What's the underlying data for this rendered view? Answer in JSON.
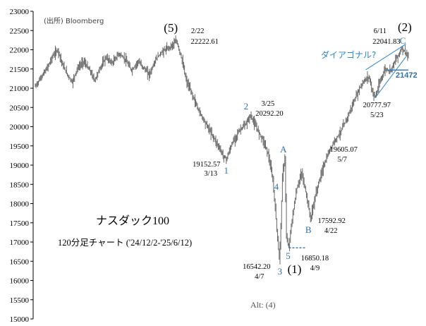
{
  "source": "(出所) Bloomberg",
  "chart_data": {
    "type": "ohlc",
    "title": "ナスダック100",
    "subtitle": "120分足チャート ('24/12/2-'25/6/12)",
    "ylim": [
      15000,
      23000
    ],
    "y_ticks": [
      "23000",
      "22500",
      "22000",
      "21500",
      "21000",
      "20500",
      "20000",
      "19500",
      "19000",
      "18500",
      "18000",
      "17500",
      "17000",
      "16500",
      "16000",
      "15500",
      "15000"
    ],
    "grid": false,
    "path": [
      {
        "t": 0,
        "v": 21050
      },
      {
        "t": 6,
        "v": 21250
      },
      {
        "t": 14,
        "v": 21500
      },
      {
        "t": 22,
        "v": 21850
      },
      {
        "t": 28,
        "v": 22000
      },
      {
        "t": 34,
        "v": 21600
      },
      {
        "t": 40,
        "v": 21350
      },
      {
        "t": 46,
        "v": 21150
      },
      {
        "t": 52,
        "v": 21500
      },
      {
        "t": 60,
        "v": 21700
      },
      {
        "t": 68,
        "v": 21450
      },
      {
        "t": 74,
        "v": 21200
      },
      {
        "t": 80,
        "v": 21500
      },
      {
        "t": 88,
        "v": 21800
      },
      {
        "t": 96,
        "v": 21650
      },
      {
        "t": 104,
        "v": 21900
      },
      {
        "t": 112,
        "v": 21750
      },
      {
        "t": 120,
        "v": 21450
      },
      {
        "t": 128,
        "v": 21700
      },
      {
        "t": 136,
        "v": 21500
      },
      {
        "t": 142,
        "v": 21350
      },
      {
        "t": 150,
        "v": 21750
      },
      {
        "t": 158,
        "v": 21950
      },
      {
        "t": 166,
        "v": 22050
      },
      {
        "t": 172,
        "v": 22150
      },
      {
        "t": 176,
        "v": 22222.61
      },
      {
        "t": 182,
        "v": 21800
      },
      {
        "t": 188,
        "v": 21200
      },
      {
        "t": 196,
        "v": 20800
      },
      {
        "t": 204,
        "v": 20400
      },
      {
        "t": 212,
        "v": 20100
      },
      {
        "t": 220,
        "v": 19800
      },
      {
        "t": 228,
        "v": 19500
      },
      {
        "t": 234,
        "v": 19250
      },
      {
        "t": 238,
        "v": 19152.57
      },
      {
        "t": 246,
        "v": 19600
      },
      {
        "t": 254,
        "v": 19900
      },
      {
        "t": 262,
        "v": 20050
      },
      {
        "t": 268,
        "v": 20292.2
      },
      {
        "t": 276,
        "v": 19950
      },
      {
        "t": 284,
        "v": 19650
      },
      {
        "t": 290,
        "v": 19300
      },
      {
        "t": 296,
        "v": 18600
      },
      {
        "t": 300,
        "v": 17600
      },
      {
        "t": 304,
        "v": 16542.2
      },
      {
        "t": 306,
        "v": 17400
      },
      {
        "t": 308,
        "v": 18700
      },
      {
        "t": 311,
        "v": 19200
      },
      {
        "t": 313,
        "v": 17100
      },
      {
        "t": 316,
        "v": 16850.18
      },
      {
        "t": 320,
        "v": 17600
      },
      {
        "t": 326,
        "v": 18400
      },
      {
        "t": 332,
        "v": 18800
      },
      {
        "t": 338,
        "v": 18200
      },
      {
        "t": 343,
        "v": 17592.92
      },
      {
        "t": 350,
        "v": 18300
      },
      {
        "t": 358,
        "v": 18900
      },
      {
        "t": 366,
        "v": 19350
      },
      {
        "t": 372,
        "v": 19605.07
      },
      {
        "t": 380,
        "v": 19850
      },
      {
        "t": 388,
        "v": 20200
      },
      {
        "t": 396,
        "v": 20600
      },
      {
        "t": 404,
        "v": 21000
      },
      {
        "t": 410,
        "v": 21200
      },
      {
        "t": 416,
        "v": 21300
      },
      {
        "t": 420,
        "v": 20900
      },
      {
        "t": 424,
        "v": 20777.97
      },
      {
        "t": 430,
        "v": 21200
      },
      {
        "t": 436,
        "v": 21500
      },
      {
        "t": 442,
        "v": 21450
      },
      {
        "t": 448,
        "v": 21700
      },
      {
        "t": 452,
        "v": 21850
      },
      {
        "t": 457,
        "v": 22041.83
      },
      {
        "t": 462,
        "v": 21900
      },
      {
        "t": 465,
        "v": 21800
      }
    ],
    "peak_text": {
      "date": "2/22",
      "value": "22222.61"
    },
    "lows_highs_labels": [
      {
        "wave": "(5)",
        "kind": "black",
        "t": 176,
        "date": "2/22",
        "value": "22222.61"
      },
      {
        "wave": "1",
        "kind": "blue",
        "t": 238,
        "date": "3/13",
        "value": "19152.57"
      },
      {
        "wave": "2",
        "kind": "blue",
        "t": 268,
        "date": "3/25",
        "value": "20292.20"
      },
      {
        "wave": "3",
        "kind": "blue",
        "t": 304,
        "date": "4/7",
        "value": "16542.20"
      },
      {
        "wave": "4",
        "kind": "blue",
        "t": 311
      },
      {
        "wave": "5",
        "kind": "blue",
        "t": 316,
        "date": "4/9",
        "value": "16850.18"
      },
      {
        "wave": "A",
        "kind": "blue",
        "t": 311
      },
      {
        "wave": "B",
        "kind": "blue",
        "t": 343,
        "date": "4/22",
        "value": "17592.92"
      },
      {
        "wave": "(1)",
        "kind": "black",
        "t": 316
      },
      {
        "wave": "C",
        "kind": "blue",
        "t": 457,
        "date": "6/11",
        "value": "22041.83"
      },
      {
        "wave": "(2)",
        "kind": "black",
        "t": 457
      }
    ],
    "extra_labels": [
      {
        "date": "5/7",
        "value": "19605.07",
        "t": 372
      },
      {
        "date": "5/23",
        "value": "20777.97",
        "t": 424
      }
    ],
    "support_level": "21472",
    "diagonal_label": "ダイアゴナル?",
    "alt_label": "Alt: (4)",
    "colors": {
      "bars": "#666666",
      "blue_line": "#2f86c8",
      "dash_line": "#2f6fae",
      "wave_blue": "#2f6fae"
    }
  }
}
